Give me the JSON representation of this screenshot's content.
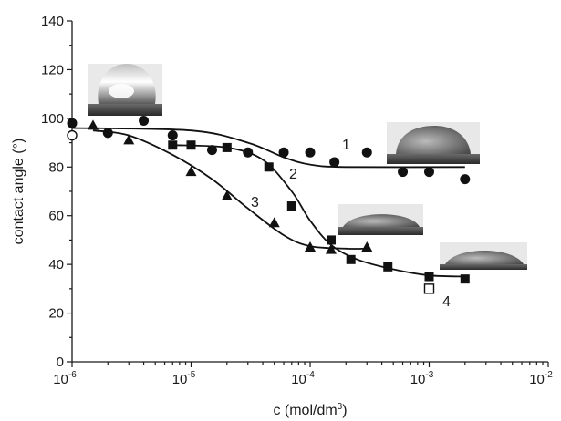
{
  "chart_data": {
    "type": "scatter",
    "xscale": "log",
    "xlim_exponents": [
      -6,
      -2
    ],
    "ylim": [
      0,
      140
    ],
    "yticks": [
      "0",
      "20",
      "40",
      "60",
      "80",
      "100",
      "120",
      "140"
    ],
    "xticks": [
      {
        "base": "10",
        "exp": "-6"
      },
      {
        "base": "10",
        "exp": "-5"
      },
      {
        "base": "10",
        "exp": "-4"
      },
      {
        "base": "10",
        "exp": "-3"
      },
      {
        "base": "10",
        "exp": "-2"
      }
    ],
    "xlabel": {
      "text": "c (mol/dm",
      "sup": "3",
      "tail": ")"
    },
    "ylabel": "contact angle (°)",
    "grid": false,
    "legend": "none",
    "series": [
      {
        "label": "1",
        "marker": "circle",
        "points": [
          [
            1e-06,
            98
          ],
          [
            2e-06,
            94
          ],
          [
            4e-06,
            99
          ],
          [
            7e-06,
            93
          ],
          [
            1.5e-05,
            87
          ],
          [
            3e-05,
            86
          ],
          [
            6e-05,
            86
          ],
          [
            0.0001,
            86
          ],
          [
            0.00016,
            82
          ],
          [
            0.0003,
            86
          ],
          [
            0.0006,
            78
          ],
          [
            0.001,
            78
          ],
          [
            0.002,
            75
          ]
        ],
        "fit": [
          [
            1e-06,
            96
          ],
          [
            1e-05,
            95
          ],
          [
            3e-05,
            90
          ],
          [
            6e-05,
            84
          ],
          [
            0.0001,
            81
          ],
          [
            0.0002,
            80
          ],
          [
            0.002,
            80
          ]
        ]
      },
      {
        "label": "2",
        "marker": "square",
        "points": [
          [
            7e-06,
            89
          ],
          [
            1e-05,
            89
          ],
          [
            2e-05,
            88
          ],
          [
            4.5e-05,
            80
          ],
          [
            7e-05,
            64
          ],
          [
            0.00015,
            50
          ],
          [
            0.00022,
            42
          ],
          [
            0.00045,
            39
          ],
          [
            0.001,
            35
          ],
          [
            0.002,
            34
          ]
        ],
        "fit": [
          [
            7e-06,
            89
          ],
          [
            2e-05,
            88
          ],
          [
            4e-05,
            83
          ],
          [
            7e-05,
            70
          ],
          [
            0.0001,
            58
          ],
          [
            0.00015,
            48
          ],
          [
            0.00025,
            42
          ],
          [
            0.0005,
            38
          ],
          [
            0.001,
            35.5
          ],
          [
            0.002,
            35
          ]
        ]
      },
      {
        "label": "3",
        "marker": "triangle",
        "points": [
          [
            1.5e-06,
            97
          ],
          [
            3e-06,
            91
          ],
          [
            1e-05,
            78
          ],
          [
            2e-05,
            68
          ],
          [
            5e-05,
            57
          ],
          [
            0.0001,
            47
          ],
          [
            0.00015,
            46
          ],
          [
            0.0003,
            47
          ]
        ],
        "fit": [
          [
            1.5e-06,
            95
          ],
          [
            3e-06,
            93
          ],
          [
            7e-06,
            85
          ],
          [
            1.5e-05,
            75
          ],
          [
            3e-05,
            63
          ],
          [
            6e-05,
            52
          ],
          [
            0.0001,
            47.5
          ],
          [
            0.0002,
            46.5
          ],
          [
            0.0003,
            46.5
          ]
        ]
      },
      {
        "label": "4",
        "marker": "open-circle, open-square",
        "points": [
          [
            1e-06,
            93
          ],
          [
            0.001,
            30
          ]
        ]
      }
    ],
    "inset_photos": [
      {
        "near": "1e-6, 100",
        "depicts": "sessile water droplet, high contact angle"
      },
      {
        "near": "1e-3, 80",
        "depicts": "droplet on curve 1 plateau"
      },
      {
        "near": "2e-4, 47",
        "depicts": "flattened droplet on curve 3 plateau"
      },
      {
        "near": "1e-3, 35",
        "depicts": "spread droplet on curve 2 plateau"
      }
    ]
  }
}
